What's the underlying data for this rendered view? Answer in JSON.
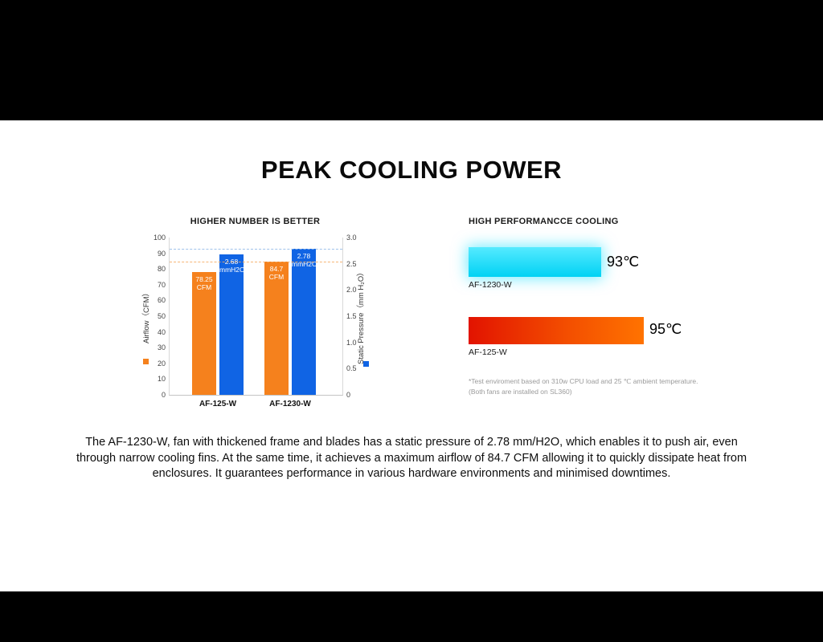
{
  "page": {
    "title": "PEAK COOLING POWER"
  },
  "chart_data": [
    {
      "type": "bar",
      "title": "HIGHER NUMBER IS BETTER",
      "categories": [
        "AF-125-W",
        "AF-1230-W"
      ],
      "series": [
        {
          "name": "Airflow",
          "unit": "CFM",
          "axis": "left",
          "color": "#f5811d",
          "values": [
            78.25,
            84.7
          ]
        },
        {
          "name": "Static Pressure",
          "unit": "mmH2O",
          "axis": "right",
          "color": "#1064e4",
          "values": [
            2.68,
            2.78
          ]
        }
      ],
      "left_axis": {
        "label": "Airflow（CFM）",
        "min": 0,
        "max": 100,
        "ticks": [
          "100",
          "90",
          "80",
          "70",
          "60",
          "50",
          "40",
          "30",
          "20",
          "10",
          "0"
        ]
      },
      "right_axis": {
        "label": "Static Pressure（mm H₂O）",
        "min": 0,
        "max": 3,
        "ticks": [
          "3.0",
          "2.5",
          "2.0",
          "1.5",
          "1.0",
          "0.5",
          "0"
        ]
      },
      "reference_lines": [
        {
          "axis": "left",
          "value": 84.7,
          "color": "#f5a95e"
        },
        {
          "axis": "right",
          "value": 2.78,
          "color": "#8fb8e8"
        }
      ],
      "grid": false,
      "legend_markers": [
        "airflow-orange",
        "pressure-blue"
      ]
    },
    {
      "type": "bar",
      "orientation": "horizontal",
      "title": "HIGH PERFORMANCCE COOLING",
      "categories": [
        "AF-1230-W",
        "AF-125-W"
      ],
      "values": [
        93,
        95
      ],
      "value_labels": [
        "93℃",
        "95℃"
      ],
      "bar_colors": [
        "cyan-gradient",
        "red-orange-gradient"
      ],
      "footnotes": [
        "*Test enviroment based on 310w CPU load and 25 ℃ ambient temperature.",
        "(Both fans are installed on SL360)"
      ]
    }
  ],
  "description": "The AF-1230-W, fan with thickened frame and blades has a static pressure of 2.78 mm/H2O, which enables it to push air, even through narrow cooling fins. At the same time, it achieves a maximum airflow of 84.7 CFM allowing it to quickly dissipate heat from enclosures. It guarantees performance in various hardware environments and minimised downtimes."
}
